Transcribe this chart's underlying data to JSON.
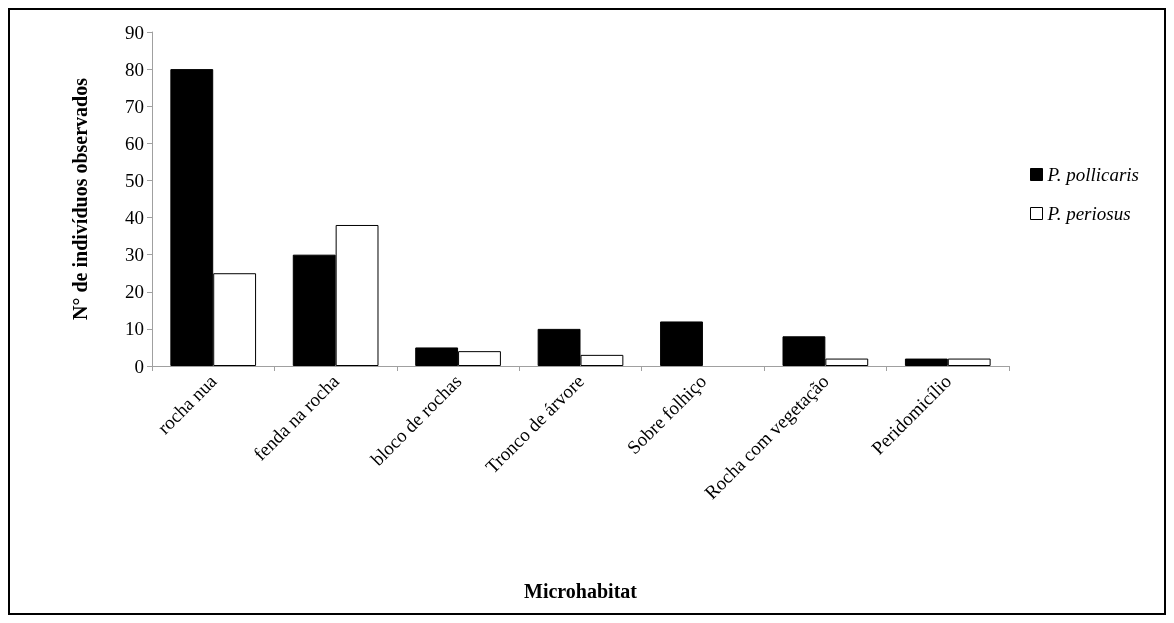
{
  "chart_data": {
    "type": "bar",
    "xlabel": "Microhabitat",
    "ylabel": "N° de indivíduos observados",
    "categories": [
      "rocha nua",
      "fenda na rocha",
      "bloco de rochas",
      "Tronco de árvore",
      "Sobre folhiço",
      "Rocha com vegetação",
      "Peridomicílio"
    ],
    "series": [
      {
        "name": "P. pollicaris",
        "color": "#000000",
        "values": [
          80,
          30,
          5,
          10,
          12,
          8,
          2
        ]
      },
      {
        "name": "P. periosus",
        "color": "#ffffff",
        "values": [
          25,
          38,
          4,
          3,
          0,
          2,
          2
        ]
      }
    ],
    "ylim": [
      0,
      90
    ],
    "yticks": [
      0,
      10,
      20,
      30,
      40,
      50,
      60,
      70,
      80,
      90
    ],
    "grid": false,
    "legend": "right"
  }
}
